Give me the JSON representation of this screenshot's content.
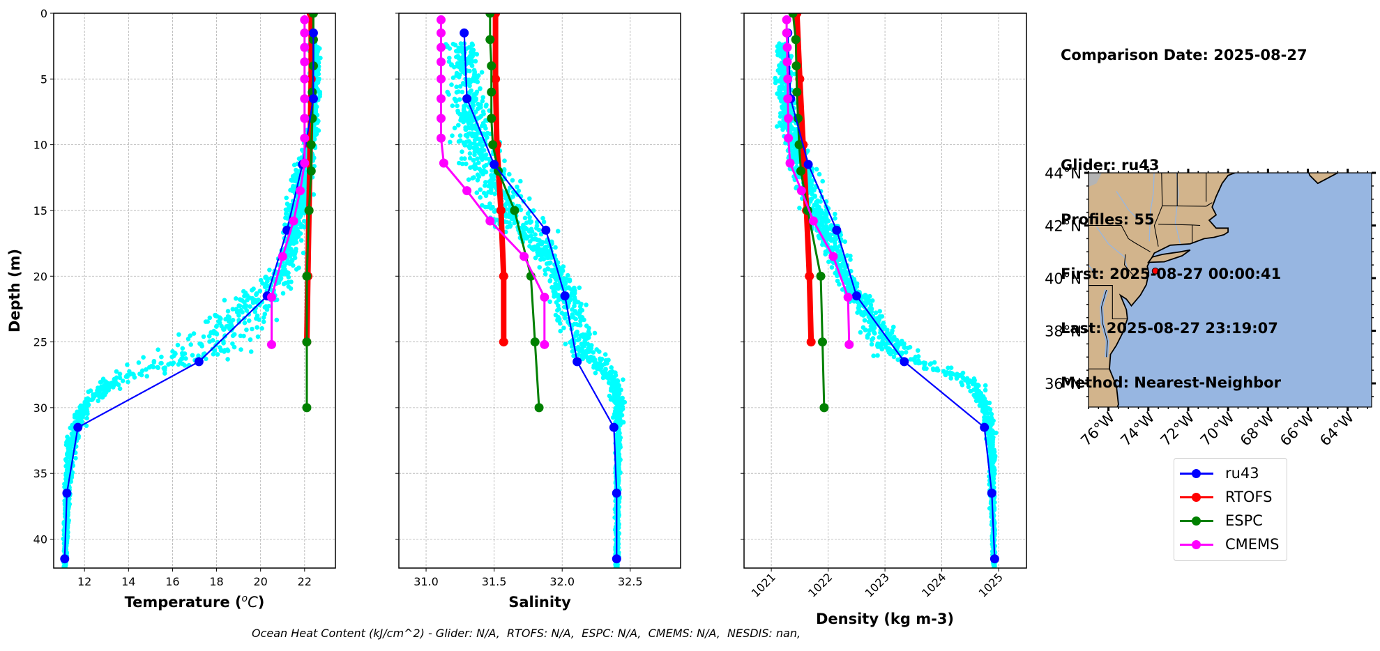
{
  "info": {
    "comparison_date": "Comparison Date: 2025-08-27",
    "glider": "Glider: ru43",
    "profiles": "Profiles: 55",
    "first": "First: 2025-08-27 00:00:41",
    "last": "Last: 2025-08-27 23:19:07",
    "method": "Method: Nearest-Neighbor"
  },
  "footer": "Ocean Heat Content (kJ/cm^2) - Glider: N/A,  RTOFS: N/A,  ESPC: N/A,  CMEMS: N/A,  NESDIS: nan,",
  "legend": [
    {
      "label": "ru43",
      "color": "#0000ff"
    },
    {
      "label": "RTOFS",
      "color": "#ff0000"
    },
    {
      "label": "ESPC",
      "color": "#008000"
    },
    {
      "label": "CMEMS",
      "color": "#ff00ff"
    }
  ],
  "colors": {
    "ru43": "#0000ff",
    "rtofs": "#ff0000",
    "espc": "#008000",
    "cmems": "#ff00ff",
    "glider_scatter": "#00ffff",
    "land": "#d2b48c",
    "ocean": "#97b6e1",
    "rivers": "#97b6e1",
    "marker": "#ff0000"
  },
  "chart_data": [
    {
      "type": "line",
      "name": "temperature",
      "xlabel": "Temperature (°C)",
      "ylabel": "Depth (m)",
      "xlim": [
        10.6,
        23.4
      ],
      "ylim": [
        42.2,
        0
      ],
      "xticks": [
        12,
        14,
        16,
        18,
        20,
        22
      ],
      "xtick_labels": [
        "12",
        "14",
        "16",
        "18",
        "20",
        "22"
      ],
      "yticks": [
        0,
        5,
        10,
        15,
        20,
        25,
        30,
        35,
        40
      ],
      "ytick_labels": [
        "0",
        "5",
        "10",
        "15",
        "20",
        "25",
        "30",
        "35",
        "40"
      ],
      "grid": true,
      "scatter_envelope": {
        "name": "ru43 raw profiles",
        "depth": [
          2.5,
          5,
          8,
          10,
          12,
          15,
          18,
          20,
          22,
          24,
          26,
          28,
          30,
          33,
          36,
          40,
          42
        ],
        "min": [
          22.0,
          22.1,
          22.0,
          21.7,
          21.3,
          20.8,
          20.6,
          19.8,
          17.5,
          15.5,
          13.5,
          12.0,
          11.4,
          11.0,
          11.0,
          11.0,
          11.0
        ],
        "max": [
          22.8,
          22.9,
          22.8,
          22.7,
          22.6,
          22.5,
          22.2,
          21.9,
          21.8,
          21.5,
          20.8,
          14.5,
          12.5,
          11.8,
          11.5,
          11.3,
          11.2
        ]
      },
      "series": [
        {
          "name": "ru43",
          "depth": [
            1.5,
            6.5,
            11.5,
            16.5,
            21.5,
            26.5,
            31.5,
            36.5,
            41.5
          ],
          "values": [
            22.4,
            22.4,
            21.9,
            21.2,
            20.3,
            17.2,
            11.7,
            11.2,
            11.1
          ]
        },
        {
          "name": "RTOFS",
          "depth": [
            0,
            5,
            10,
            15,
            20,
            25
          ],
          "values": [
            22.3,
            22.3,
            22.25,
            22.2,
            22.15,
            22.1
          ]
        },
        {
          "name": "ESPC",
          "depth": [
            0,
            2,
            4,
            6,
            8,
            10,
            12,
            15,
            20,
            25,
            30
          ],
          "values": [
            22.4,
            22.4,
            22.4,
            22.35,
            22.35,
            22.3,
            22.3,
            22.2,
            22.1,
            22.1,
            22.1
          ]
        },
        {
          "name": "CMEMS",
          "depth": [
            0.5,
            1.5,
            2.6,
            3.7,
            5.0,
            6.5,
            8.0,
            9.5,
            11.4,
            13.5,
            15.8,
            18.5,
            21.6,
            25.2
          ],
          "values": [
            22.0,
            22.0,
            22.0,
            22.0,
            22.0,
            22.0,
            22.0,
            22.0,
            22.0,
            21.8,
            21.5,
            21.0,
            20.5,
            20.5
          ]
        }
      ]
    },
    {
      "type": "line",
      "name": "salinity",
      "xlabel": "Salinity",
      "ylabel": "",
      "xlim": [
        30.8,
        32.87
      ],
      "ylim": [
        42.2,
        0
      ],
      "xticks": [
        31.0,
        31.5,
        32.0,
        32.5
      ],
      "xtick_labels": [
        "31.0",
        "31.5",
        "32.0",
        "32.5"
      ],
      "yticks": [
        0,
        5,
        10,
        15,
        20,
        25,
        30,
        35,
        40
      ],
      "grid": true,
      "scatter_envelope": {
        "name": "ru43 raw profiles",
        "depth": [
          2.5,
          5,
          8,
          10,
          12,
          15,
          18,
          20,
          22,
          24,
          26,
          28,
          30,
          33,
          36,
          40,
          42
        ],
        "min": [
          31.05,
          31.08,
          31.1,
          31.12,
          31.15,
          31.25,
          31.7,
          31.8,
          31.85,
          31.9,
          32.0,
          32.3,
          32.35,
          32.38,
          32.38,
          32.38,
          32.38
        ],
        "max": [
          31.5,
          31.5,
          31.55,
          31.62,
          31.75,
          31.95,
          32.05,
          32.15,
          32.2,
          32.3,
          32.4,
          32.47,
          32.47,
          32.44,
          32.43,
          32.43,
          32.42
        ]
      },
      "series": [
        {
          "name": "ru43",
          "depth": [
            1.5,
            6.5,
            11.5,
            16.5,
            21.5,
            26.5,
            31.5,
            36.5,
            41.5
          ],
          "values": [
            31.28,
            31.3,
            31.5,
            31.88,
            32.02,
            32.11,
            32.38,
            32.4,
            32.4
          ]
        },
        {
          "name": "RTOFS",
          "depth": [
            0,
            5,
            10,
            15,
            20,
            25
          ],
          "values": [
            31.51,
            31.51,
            31.52,
            31.55,
            31.57,
            31.57
          ]
        },
        {
          "name": "ESPC",
          "depth": [
            0,
            2,
            4,
            6,
            8,
            10,
            12,
            15,
            20,
            25,
            30
          ],
          "values": [
            31.47,
            31.47,
            31.48,
            31.48,
            31.48,
            31.49,
            31.53,
            31.65,
            31.77,
            31.8,
            31.83
          ]
        },
        {
          "name": "CMEMS",
          "depth": [
            0.5,
            1.5,
            2.6,
            3.7,
            5.0,
            6.5,
            8.0,
            9.5,
            11.4,
            13.5,
            15.8,
            18.5,
            21.6,
            25.2
          ],
          "values": [
            31.11,
            31.11,
            31.11,
            31.11,
            31.11,
            31.11,
            31.11,
            31.11,
            31.13,
            31.3,
            31.47,
            31.72,
            31.87,
            31.87
          ]
        }
      ]
    },
    {
      "type": "line",
      "name": "density",
      "xlabel": "Density (kg m-3)",
      "ylabel": "",
      "xlim": [
        1020.52,
        1025.49
      ],
      "ylim": [
        42.2,
        0
      ],
      "xticks": [
        1021,
        1022,
        1023,
        1024,
        1025
      ],
      "xtick_labels": [
        "1021",
        "1022",
        "1023",
        "1024",
        "1025"
      ],
      "xtick_rotation_deg": 45,
      "yticks": [
        0,
        5,
        10,
        15,
        20,
        25,
        30,
        35,
        40
      ],
      "grid": true,
      "scatter_envelope": {
        "name": "ru43 raw profiles",
        "depth": [
          2.5,
          5,
          8,
          10,
          12,
          15,
          18,
          20,
          22,
          24,
          26,
          28,
          30,
          33,
          36,
          40,
          42
        ],
        "min": [
          1021.0,
          1021.0,
          1021.02,
          1021.1,
          1021.2,
          1021.35,
          1021.8,
          1022.0,
          1022.3,
          1022.4,
          1022.6,
          1024.2,
          1024.6,
          1024.78,
          1024.8,
          1024.85,
          1024.88
        ],
        "max": [
          1021.4,
          1021.45,
          1021.55,
          1021.72,
          1021.92,
          1022.25,
          1022.45,
          1022.6,
          1022.9,
          1023.4,
          1023.9,
          1024.85,
          1024.95,
          1024.98,
          1024.97,
          1024.97,
          1024.96
        ]
      },
      "series": [
        {
          "name": "ru43",
          "depth": [
            1.5,
            6.5,
            11.5,
            16.5,
            21.5,
            26.5,
            31.5,
            36.5,
            41.5
          ],
          "values": [
            1021.29,
            1021.34,
            1021.65,
            1022.15,
            1022.5,
            1023.34,
            1024.75,
            1024.88,
            1024.93
          ]
        },
        {
          "name": "RTOFS",
          "depth": [
            0,
            5,
            10,
            15,
            20,
            25
          ],
          "values": [
            1021.45,
            1021.5,
            1021.56,
            1021.62,
            1021.67,
            1021.7
          ]
        },
        {
          "name": "ESPC",
          "depth": [
            0,
            2,
            4,
            6,
            8,
            10,
            12,
            15,
            20,
            25,
            30
          ],
          "values": [
            1021.38,
            1021.43,
            1021.44,
            1021.45,
            1021.47,
            1021.49,
            1021.52,
            1021.64,
            1021.87,
            1021.9,
            1021.93
          ]
        },
        {
          "name": "CMEMS",
          "depth": [
            0.5,
            1.5,
            2.6,
            3.7,
            5.0,
            6.5,
            8.0,
            9.5,
            11.4,
            13.5,
            15.8,
            18.5,
            21.6,
            25.2
          ],
          "values": [
            1021.27,
            1021.27,
            1021.28,
            1021.28,
            1021.29,
            1021.29,
            1021.3,
            1021.3,
            1021.33,
            1021.53,
            1021.74,
            1022.09,
            1022.35,
            1022.37
          ]
        }
      ]
    },
    {
      "type": "map",
      "name": "glider-location-map",
      "lon_range": [
        -77.0,
        -62.8
      ],
      "lat_range": [
        35.1,
        44.0
      ],
      "xticks": [
        -76,
        -74,
        -72,
        -70,
        -68,
        -66,
        -64
      ],
      "xtick_labels": [
        "76°W",
        "74°W",
        "72°W",
        "70°W",
        "68°W",
        "66°W",
        "64°W"
      ],
      "yticks": [
        36,
        38,
        40,
        42,
        44
      ],
      "ytick_labels": [
        "36°N",
        "38°N",
        "40°N",
        "42°N",
        "44°N"
      ],
      "glider_position": {
        "lon": -73.65,
        "lat": 40.27
      }
    }
  ]
}
